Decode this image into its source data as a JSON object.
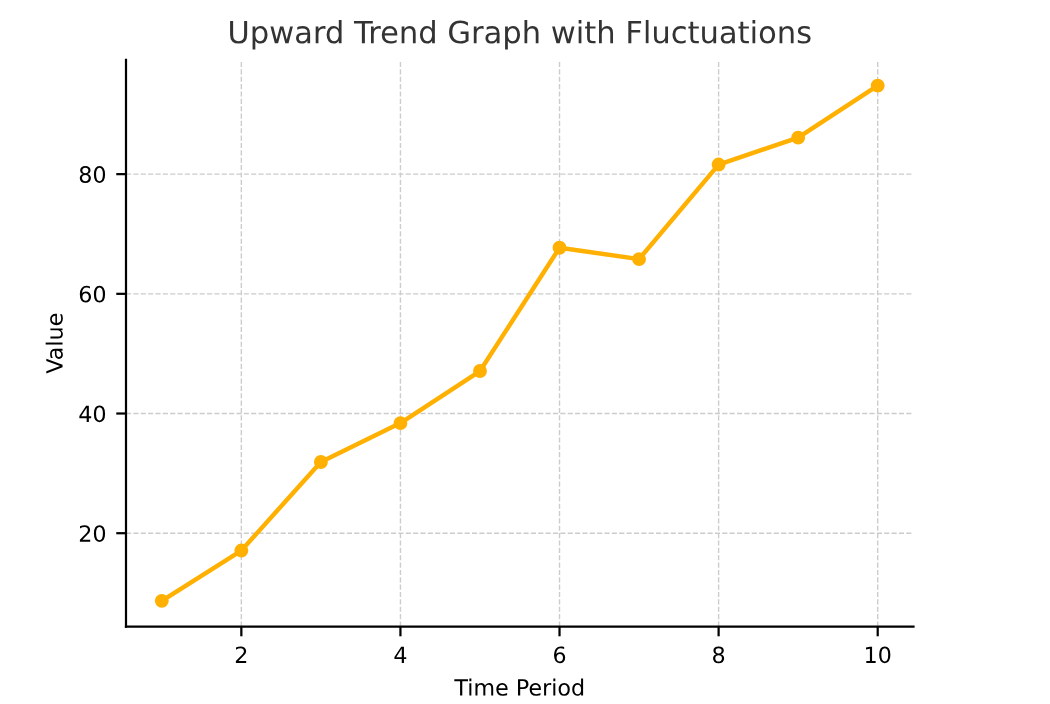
{
  "chart_data": {
    "type": "line",
    "title": "Upward Trend Graph with Fluctuations",
    "xlabel": "Time Period",
    "ylabel": "Value",
    "x": [
      1,
      2,
      3,
      4,
      5,
      6,
      7,
      8,
      9,
      10
    ],
    "series": [
      {
        "color": "#ffb000",
        "values": [
          8.7,
          17.1,
          31.9,
          38.4,
          47.1,
          67.7,
          65.8,
          81.6,
          86.1,
          94.8
        ]
      }
    ],
    "xlim": [
      0.55,
      10.45
    ],
    "xticks": [
      2,
      4,
      6,
      8,
      10
    ],
    "ylim": [
      4.4,
      99.1
    ],
    "yticks": [
      20,
      40,
      60,
      80
    ],
    "grid": true,
    "marker": "circle",
    "line_style": "solid",
    "legend": false
  }
}
